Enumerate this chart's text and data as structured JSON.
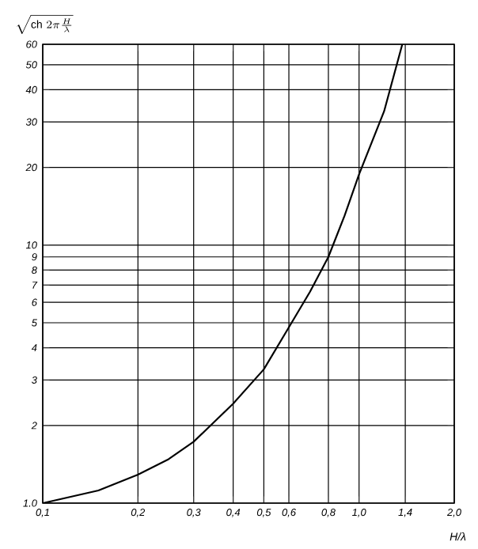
{
  "chart_data": {
    "type": "line",
    "xlabel": "H/λ",
    "ylabel": "\\sqrt{\\mathrm{ch}\\;2\\pi\\frac{H}{\\lambda}}",
    "log": "xy",
    "grid": true,
    "marker": "none",
    "line_style": "solid",
    "x": [
      0.1,
      0.15,
      0.2,
      0.25,
      0.3,
      0.4,
      0.5,
      0.6,
      0.7,
      0.8,
      0.9,
      1.0,
      1.2,
      1.37
    ],
    "series": [
      {
        "color": "#000000",
        "values": [
          1.0,
          1.12,
          1.29,
          1.48,
          1.73,
          2.43,
          3.3,
          4.8,
          6.6,
          9.0,
          13,
          18.8,
          33,
          60
        ]
      }
    ],
    "xlim": [
      0.1,
      2.0
    ],
    "ylim": [
      1.0,
      60
    ],
    "xticks": [
      {
        "value": 0.1,
        "label": "0,1"
      },
      {
        "value": 0.2,
        "label": "0,2"
      },
      {
        "value": 0.3,
        "label": "0,3"
      },
      {
        "value": 0.4,
        "label": "0,4"
      },
      {
        "value": 0.5,
        "label": "0,5"
      },
      {
        "value": 0.6,
        "label": "0,6"
      },
      {
        "value": 0.8,
        "label": "0,8"
      },
      {
        "value": 1.0,
        "label": "1,0"
      },
      {
        "value": 1.4,
        "label": "1,4"
      },
      {
        "value": 2.0,
        "label": "2,0"
      }
    ],
    "yticks": [
      {
        "value": 1.0,
        "label": "1.0"
      },
      2,
      3,
      4,
      5,
      6,
      7,
      8,
      9,
      10,
      20,
      30,
      40,
      50,
      60
    ]
  }
}
